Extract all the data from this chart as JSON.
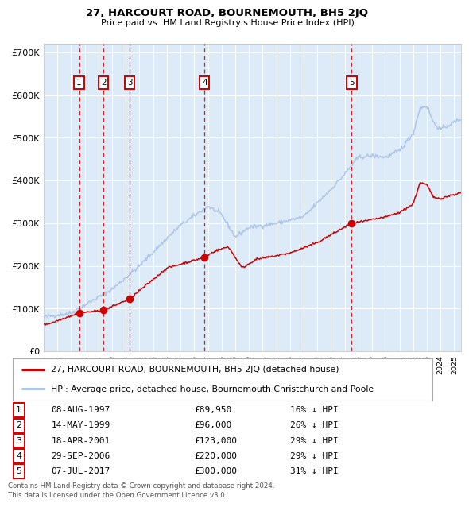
{
  "title": "27, HARCOURT ROAD, BOURNEMOUTH, BH5 2JQ",
  "subtitle": "Price paid vs. HM Land Registry's House Price Index (HPI)",
  "footer1": "Contains HM Land Registry data © Crown copyright and database right 2024.",
  "footer2": "This data is licensed under the Open Government Licence v3.0.",
  "legend_red": "27, HARCOURT ROAD, BOURNEMOUTH, BH5 2JQ (detached house)",
  "legend_blue": "HPI: Average price, detached house, Bournemouth Christchurch and Poole",
  "transactions": [
    {
      "id": 1,
      "date": "08-AUG-1997",
      "price": 89950,
      "pct": "16% ↓ HPI",
      "year": 1997.59
    },
    {
      "id": 2,
      "date": "14-MAY-1999",
      "price": 96000,
      "pct": "26% ↓ HPI",
      "year": 1999.37
    },
    {
      "id": 3,
      "date": "18-APR-2001",
      "price": 123000,
      "pct": "29% ↓ HPI",
      "year": 2001.29
    },
    {
      "id": 4,
      "date": "29-SEP-2006",
      "price": 220000,
      "pct": "29% ↓ HPI",
      "year": 2006.75
    },
    {
      "id": 5,
      "date": "07-JUL-2017",
      "price": 300000,
      "pct": "31% ↓ HPI",
      "year": 2017.51
    }
  ],
  "hpi_color": "#aec6e8",
  "price_color": "#cc0000",
  "bg_color": "#ddeaf7",
  "ylim": [
    0,
    720000
  ],
  "xlim_start": 1995.0,
  "xlim_end": 2025.5,
  "yticks": [
    0,
    100000,
    200000,
    300000,
    400000,
    500000,
    600000,
    700000
  ],
  "ylabels": [
    "£0",
    "£100K",
    "£200K",
    "£300K",
    "£400K",
    "£500K",
    "£600K",
    "£700K"
  ],
  "xtick_years": [
    1995,
    1996,
    1997,
    1998,
    1999,
    2000,
    2001,
    2002,
    2003,
    2004,
    2005,
    2006,
    2007,
    2008,
    2009,
    2010,
    2011,
    2012,
    2013,
    2014,
    2015,
    2016,
    2017,
    2018,
    2019,
    2020,
    2021,
    2022,
    2023,
    2024,
    2025
  ]
}
